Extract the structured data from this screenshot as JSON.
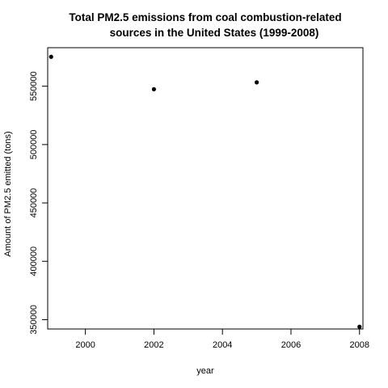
{
  "chart_data": {
    "type": "scatter",
    "title_lines": [
      "Total PM2.5 emissions from coal combustion-related",
      "sources in the United States (1999-2008)"
    ],
    "xlabel": "year",
    "ylabel": "Amount of PM2.5 emitted (tons)",
    "x_ticks": [
      2000,
      2002,
      2004,
      2006,
      2008
    ],
    "y_ticks": [
      350000,
      400000,
      450000,
      500000,
      550000
    ],
    "xlim": [
      1998.9,
      2008.1
    ],
    "ylim": [
      342000,
      583000
    ],
    "points": [
      {
        "x": 1999,
        "y": 575200
      },
      {
        "x": 2002,
        "y": 547400
      },
      {
        "x": 2005,
        "y": 553300
      },
      {
        "x": 2008,
        "y": 343900
      }
    ],
    "grid": false,
    "legend": "none",
    "point_color": "#000000"
  }
}
